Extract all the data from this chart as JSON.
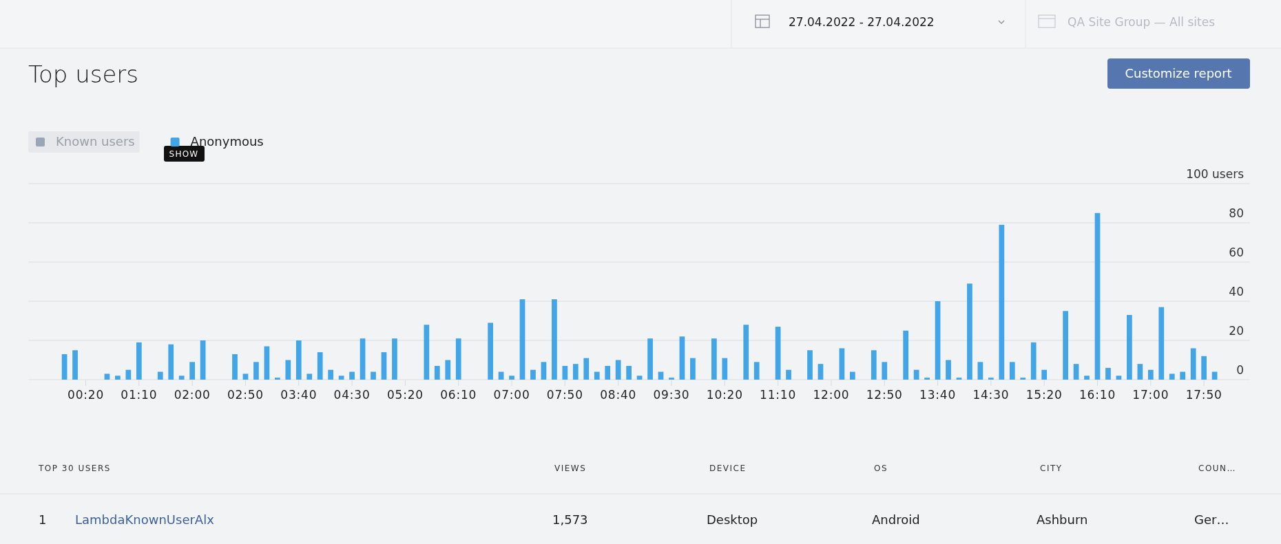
{
  "chart_data": {
    "type": "bar",
    "title": "Top users",
    "categories": [
      null,
      null,
      "00:20",
      null,
      null,
      null,
      null,
      "01:10",
      null,
      null,
      null,
      null,
      "02:00",
      null,
      null,
      null,
      null,
      "02:50",
      null,
      null,
      null,
      null,
      "03:40",
      null,
      null,
      null,
      null,
      "04:30",
      null,
      null,
      null,
      null,
      "05:20",
      null,
      null,
      null,
      null,
      "06:10",
      null,
      null,
      null,
      null,
      "07:00",
      null,
      null,
      null,
      null,
      "07:50",
      null,
      null,
      null,
      null,
      "08:40",
      null,
      null,
      null,
      null,
      "09:30",
      null,
      null,
      null,
      null,
      "10:20",
      null,
      null,
      null,
      null,
      "11:10",
      null,
      null,
      null,
      null,
      "12:00",
      null,
      null,
      null,
      null,
      "12:50",
      null,
      null,
      null,
      null,
      "13:40",
      null,
      null,
      null,
      null,
      "14:30",
      null,
      null,
      null,
      null,
      "15:20",
      null,
      null,
      null,
      null,
      "16:10",
      null,
      null,
      null,
      null,
      "17:00",
      null,
      null,
      null,
      null,
      "17:50",
      null
    ],
    "series": [
      {
        "name": "Known users",
        "color": "#9aa5b8",
        "values": [
          null,
          null,
          null,
          null,
          null,
          null,
          null,
          null,
          null,
          null,
          null,
          null,
          null,
          null,
          null,
          null,
          null,
          null,
          null,
          null,
          null,
          null,
          null,
          null,
          null,
          null,
          null,
          null,
          null,
          null,
          null,
          null,
          null,
          null,
          null,
          null,
          null,
          null,
          null,
          null,
          null,
          null,
          null,
          null,
          null,
          null,
          null,
          null,
          null,
          null,
          null,
          null,
          null,
          null,
          null,
          null,
          null,
          null,
          null,
          null,
          null,
          null,
          null,
          null,
          null,
          null,
          null,
          null,
          null,
          null,
          null,
          null,
          null,
          null,
          null,
          null,
          null,
          null,
          null,
          null,
          null,
          null,
          null,
          null,
          null,
          null,
          null,
          null,
          null,
          null,
          null,
          null,
          null,
          null,
          null,
          null,
          null,
          null,
          null,
          null,
          null,
          null,
          null,
          null,
          null,
          null,
          null,
          null,
          null
        ]
      },
      {
        "name": "Anonymous",
        "color": "#42a5e8",
        "values": [
          13,
          15,
          null,
          null,
          3,
          2,
          5,
          19,
          null,
          4,
          18,
          2,
          9,
          20,
          null,
          null,
          13,
          3,
          9,
          17,
          1,
          10,
          20,
          3,
          14,
          5,
          2,
          4,
          21,
          4,
          14,
          21,
          null,
          null,
          28,
          7,
          10,
          21,
          null,
          null,
          29,
          4,
          2,
          41,
          5,
          9,
          41,
          7,
          8,
          11,
          4,
          7,
          10,
          7,
          2,
          21,
          4,
          1,
          22,
          11,
          null,
          21,
          11,
          null,
          28,
          9,
          null,
          27,
          5,
          null,
          15,
          8,
          null,
          16,
          4,
          null,
          15,
          9,
          null,
          25,
          5,
          1,
          40,
          10,
          1,
          49,
          9,
          1,
          79,
          9,
          1,
          19,
          5,
          null,
          35,
          8,
          2,
          85,
          6,
          2,
          33,
          8,
          5,
          37,
          3,
          4,
          16,
          12,
          4
        ]
      }
    ],
    "ylim": [
      0,
      100
    ],
    "yticks": [
      0,
      20,
      40,
      60,
      80,
      {
        "value": 100,
        "label": "100 users"
      }
    ],
    "grid": "y",
    "legend": "top left",
    "annotations": [
      "27.04.2022 - 27.04.2022",
      "QA Site Group — All sites",
      "Customize report",
      "SHOW",
      "TOP 30 USERS",
      "VIEWS",
      "DEVICE",
      "OS",
      "CITY",
      "COUN…",
      "1",
      "LambdaKnownUserAlx",
      "1,573",
      "Desktop",
      "Android",
      "Ashburn",
      "Ger…"
    ]
  }
}
